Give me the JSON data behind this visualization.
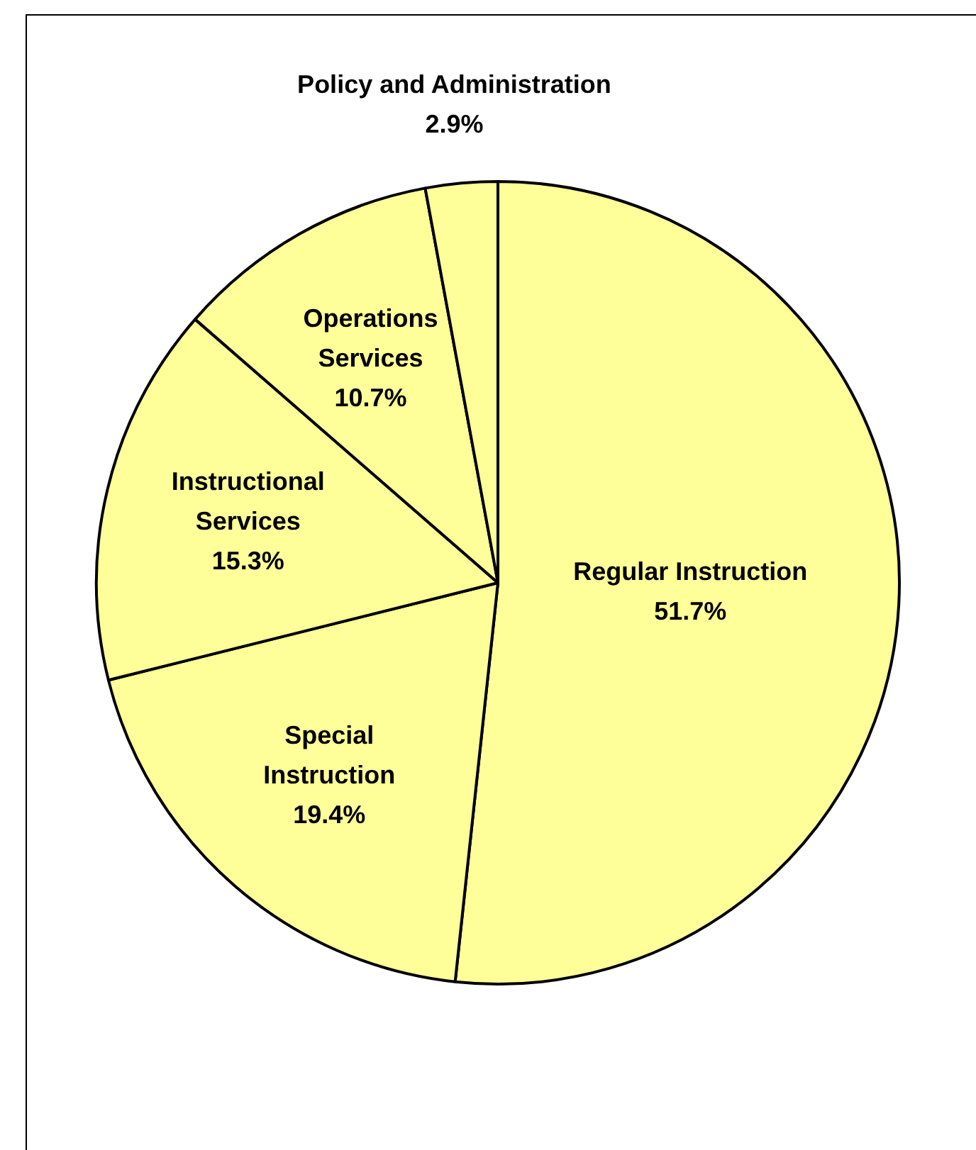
{
  "chart_data": {
    "type": "pie",
    "categories": [
      "Regular Instruction",
      "Special Instruction",
      "Instructional Services",
      "Operations Services",
      "Policy and Administration"
    ],
    "values": [
      51.7,
      19.4,
      15.3,
      10.7,
      2.9
    ],
    "value_labels": [
      "51.7%",
      "19.4%",
      "15.3%",
      "10.7%",
      "2.9%"
    ],
    "colors": [
      "#ffff99",
      "#ffff99",
      "#ffff99",
      "#ffff99",
      "#ffff99"
    ],
    "legend": false
  }
}
